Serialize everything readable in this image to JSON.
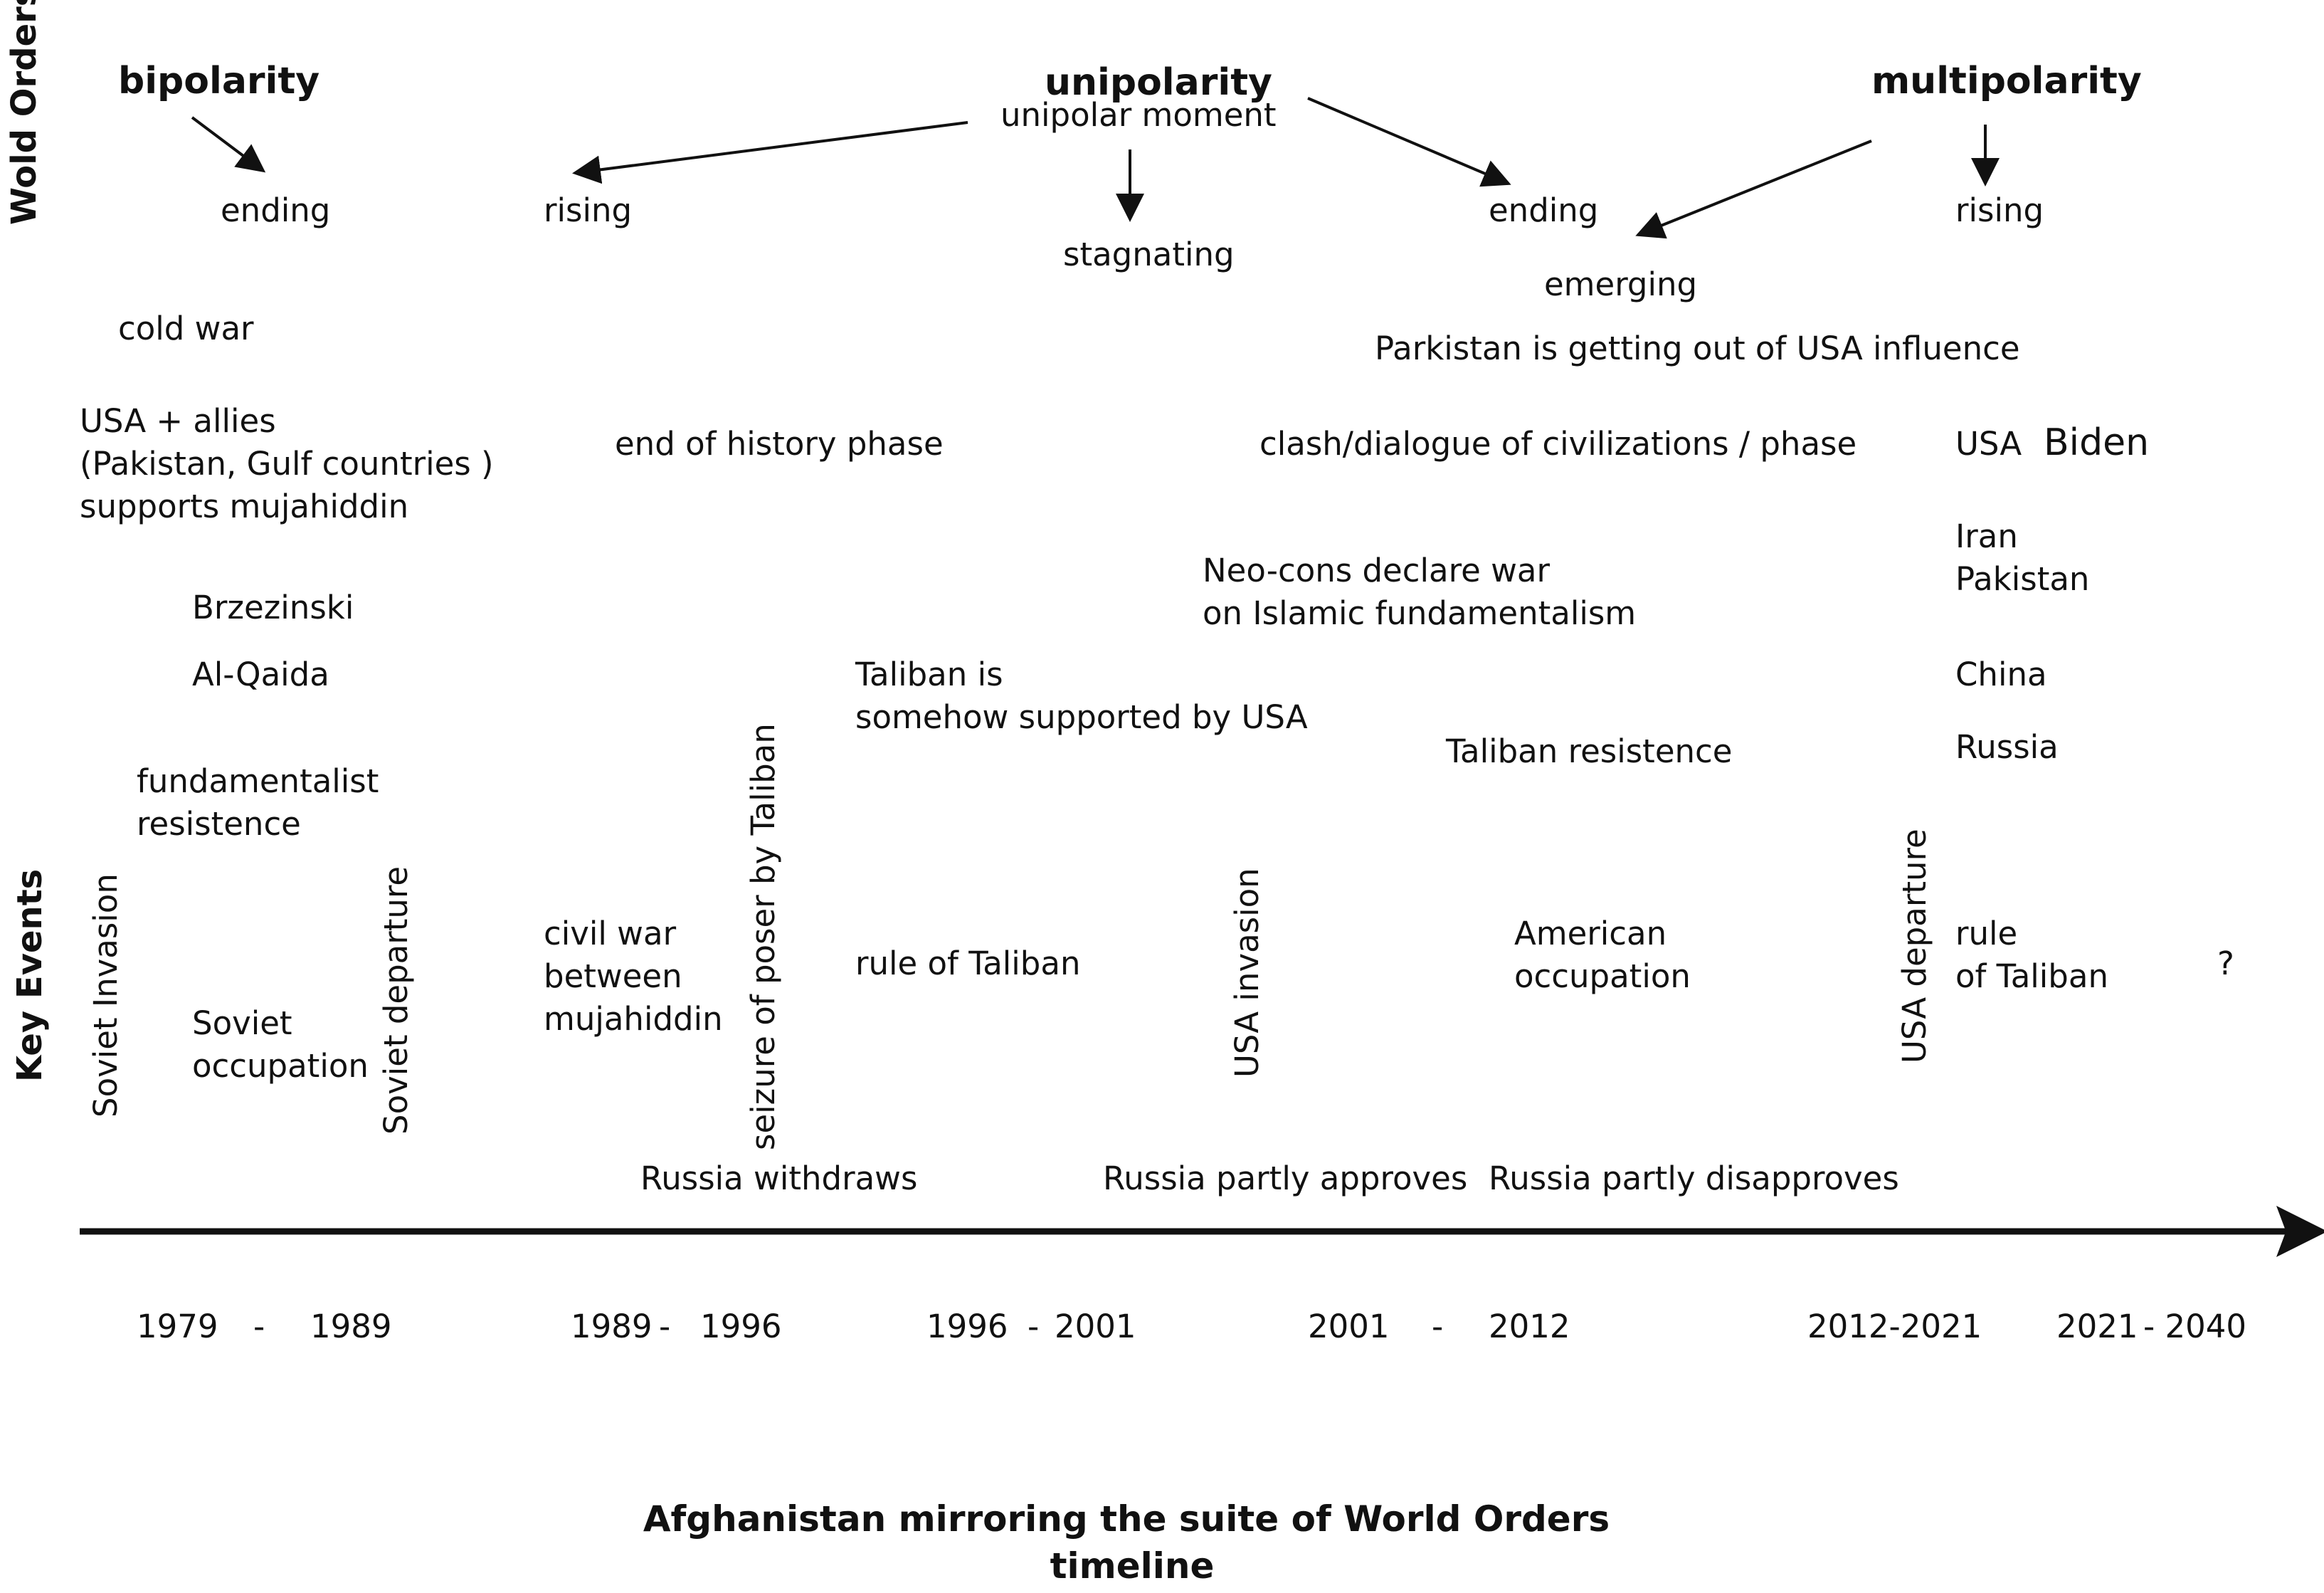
{
  "side_labels": {
    "world_orders": "Wold Orders",
    "key_events": "Key Events"
  },
  "orders": {
    "bipolarity": "bipolarity",
    "unipolarity": "unipolarity",
    "multipolarity": "multipolarity",
    "unipolar_moment": "unipolar moment"
  },
  "phases": {
    "bi_ending": "ending",
    "uni_rising": "rising",
    "uni_stagnating": "stagnating",
    "uni_ending": "ending",
    "multi_emerging": "emerging",
    "multi_rising": "rising"
  },
  "notes": {
    "cold_war": "cold war",
    "usa_allies_1": "USA + allies",
    "usa_allies_2": "(Pakistan, Gulf countries )",
    "usa_allies_3": "supports mujahiddin",
    "brzezinski": "Brzezinski",
    "al_qaida": "Al-Qaida",
    "fund_1": "fundamentalist",
    "fund_2": " resistence",
    "end_history": "end of history phase",
    "taliban_supported_1": "Taliban is",
    "taliban_supported_2": "somehow supported by USA",
    "pakistan_out": "Parkistan is getting out of USA influence",
    "clash": "clash/dialogue of civilizations / phase",
    "neocons_1": "Neo-cons declare war",
    "neocons_2": "on Islamic fundamentalism",
    "taliban_resistence": "Taliban resistence",
    "usa": "USA",
    "biden": "Biden",
    "iran": "Iran",
    "pakistan": "Pakistan",
    "china": "China",
    "russia": "Russia"
  },
  "events": {
    "soviet_invasion": "Soviet Invasion",
    "soviet_occupation_1": "Soviet",
    "soviet_occupation_2": "occupation",
    "soviet_departure": "Soviet departure",
    "civil_war_1": "civil war",
    "civil_war_2": "between",
    "civil_war_3": "mujahiddin",
    "seizure": "seizure of poser by Taliban",
    "rule_taliban": "rule of Taliban",
    "usa_invasion": "USA invasion",
    "american_occupation_1": "American",
    "american_occupation_2": "occupation",
    "usa_departure": "USA departure",
    "rule_taliban2_1": "rule",
    "rule_taliban2_2": "of Taliban",
    "question": "?"
  },
  "russia_stance": {
    "withdraws": "Russia withdraws",
    "approves": "Russia partly approves",
    "disapproves": "Russia partly disapproves"
  },
  "years": {
    "y1979": "1979",
    "dash1": "-",
    "y1989a": "1989",
    "y1989b": "1989",
    "dash2": "-",
    "y1996a": "1996",
    "y1996b": "1996",
    "dash3": "-",
    "y2001a": "2001",
    "y2001b": "2001",
    "dash4": "-",
    "y2012": "2012",
    "y2012_2021": "2012-2021",
    "y2021": "2021",
    "y2040": "- 2040"
  },
  "title": {
    "line1": "Afghanistan mirroring the suite of World Orders",
    "line2": "timeline"
  }
}
